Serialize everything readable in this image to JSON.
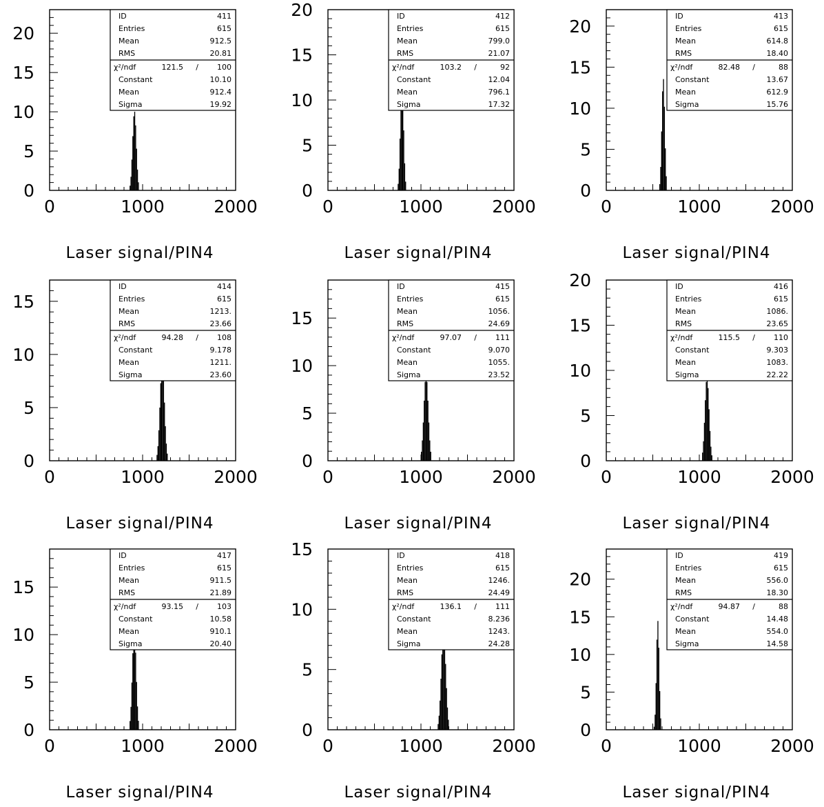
{
  "chart_data": [
    {
      "type": "bar",
      "id": "411",
      "xlabel": "Laser signal/PIN4",
      "xlim": [
        0,
        2000
      ],
      "ylim": [
        0,
        23
      ],
      "xticks": [
        "0",
        "1000",
        "2000"
      ],
      "yticks": [
        "0",
        "5",
        "10",
        "15",
        "20"
      ],
      "ytick_values": [
        0,
        5,
        10,
        15,
        20
      ],
      "stats": {
        "ID": "411",
        "Entries": "615",
        "Mean": "912.5",
        "RMS": "20.81"
      },
      "fit": {
        "chi2_ndf": "121.5",
        "ndf": "100",
        "Constant": "10.10",
        "Mean": "912.4",
        "Sigma": "19.92"
      }
    },
    {
      "type": "bar",
      "id": "412",
      "xlabel": "Laser signal/PIN4",
      "xlim": [
        0,
        2000
      ],
      "ylim": [
        0,
        20
      ],
      "xticks": [
        "0",
        "1000",
        "2000"
      ],
      "yticks": [
        "0",
        "5",
        "10",
        "15",
        "20"
      ],
      "ytick_values": [
        0,
        5,
        10,
        15,
        20
      ],
      "stats": {
        "ID": "412",
        "Entries": "615",
        "Mean": "799.0",
        "RMS": "21.07"
      },
      "fit": {
        "chi2_ndf": "103.2",
        "ndf": "92",
        "Constant": "12.04",
        "Mean": "796.1",
        "Sigma": "17.32"
      }
    },
    {
      "type": "bar",
      "id": "413",
      "xlabel": "Laser signal/PIN4",
      "xlim": [
        0,
        2000
      ],
      "ylim": [
        0,
        22
      ],
      "xticks": [
        "0",
        "1000",
        "2000"
      ],
      "yticks": [
        "0",
        "5",
        "10",
        "15",
        "20"
      ],
      "ytick_values": [
        0,
        5,
        10,
        15,
        20
      ],
      "stats": {
        "ID": "413",
        "Entries": "615",
        "Mean": "614.8",
        "RMS": "18.40"
      },
      "fit": {
        "chi2_ndf": "82.48",
        "ndf": "88",
        "Constant": "13.67",
        "Mean": "612.9",
        "Sigma": "15.76"
      }
    },
    {
      "type": "bar",
      "id": "414",
      "xlabel": "Laser signal/PIN4",
      "xlim": [
        0,
        2000
      ],
      "ylim": [
        0,
        17
      ],
      "xticks": [
        "0",
        "1000",
        "2000"
      ],
      "yticks": [
        "0",
        "5",
        "10",
        "15"
      ],
      "ytick_values": [
        0,
        5,
        10,
        15
      ],
      "stats": {
        "ID": "414",
        "Entries": "615",
        "Mean": "1213.",
        "RMS": "23.66"
      },
      "fit": {
        "chi2_ndf": "94.28",
        "ndf": "108",
        "Constant": "9.178",
        "Mean": "1211.",
        "Sigma": "23.60"
      }
    },
    {
      "type": "bar",
      "id": "415",
      "xlabel": "Laser signal/PIN4",
      "xlim": [
        0,
        2000
      ],
      "ylim": [
        0,
        19
      ],
      "xticks": [
        "0",
        "1000",
        "2000"
      ],
      "yticks": [
        "0",
        "5",
        "10",
        "15"
      ],
      "ytick_values": [
        0,
        5,
        10,
        15
      ],
      "stats": {
        "ID": "415",
        "Entries": "615",
        "Mean": "1056.",
        "RMS": "24.69"
      },
      "fit": {
        "chi2_ndf": "97.07",
        "ndf": "111",
        "Constant": "9.070",
        "Mean": "1055.",
        "Sigma": "23.52"
      }
    },
    {
      "type": "bar",
      "id": "416",
      "xlabel": "Laser signal/PIN4",
      "xlim": [
        0,
        2000
      ],
      "ylim": [
        0,
        20
      ],
      "xticks": [
        "0",
        "1000",
        "2000"
      ],
      "yticks": [
        "0",
        "5",
        "10",
        "15",
        "20"
      ],
      "ytick_values": [
        0,
        5,
        10,
        15,
        20
      ],
      "stats": {
        "ID": "416",
        "Entries": "615",
        "Mean": "1086.",
        "RMS": "23.65"
      },
      "fit": {
        "chi2_ndf": "115.5",
        "ndf": "110",
        "Constant": "9.303",
        "Mean": "1083.",
        "Sigma": "22.22"
      }
    },
    {
      "type": "bar",
      "id": "417",
      "xlabel": "Laser signal/PIN4",
      "xlim": [
        0,
        2000
      ],
      "ylim": [
        0,
        19
      ],
      "xticks": [
        "0",
        "1000",
        "2000"
      ],
      "yticks": [
        "0",
        "5",
        "10",
        "15"
      ],
      "ytick_values": [
        0,
        5,
        10,
        15
      ],
      "stats": {
        "ID": "417",
        "Entries": "615",
        "Mean": "911.5",
        "RMS": "21.89"
      },
      "fit": {
        "chi2_ndf": "93.15",
        "ndf": "103",
        "Constant": "10.58",
        "Mean": "910.1",
        "Sigma": "20.40"
      }
    },
    {
      "type": "bar",
      "id": "418",
      "xlabel": "Laser signal/PIN4",
      "xlim": [
        0,
        2000
      ],
      "ylim": [
        0,
        15
      ],
      "xticks": [
        "0",
        "1000",
        "2000"
      ],
      "yticks": [
        "0",
        "5",
        "10",
        "15"
      ],
      "ytick_values": [
        0,
        5,
        10,
        15
      ],
      "stats": {
        "ID": "418",
        "Entries": "615",
        "Mean": "1246.",
        "RMS": "24.49"
      },
      "fit": {
        "chi2_ndf": "136.1",
        "ndf": "111",
        "Constant": "8.236",
        "Mean": "1243.",
        "Sigma": "24.28"
      }
    },
    {
      "type": "bar",
      "id": "419",
      "xlabel": "Laser signal/PIN4",
      "xlim": [
        0,
        2000
      ],
      "ylim": [
        0,
        24
      ],
      "xticks": [
        "0",
        "1000",
        "2000"
      ],
      "yticks": [
        "0",
        "5",
        "10",
        "15",
        "20"
      ],
      "ytick_values": [
        0,
        5,
        10,
        15,
        20
      ],
      "stats": {
        "ID": "419",
        "Entries": "615",
        "Mean": "556.0",
        "RMS": "18.30"
      },
      "fit": {
        "chi2_ndf": "94.87",
        "ndf": "88",
        "Constant": "14.48",
        "Mean": "554.0",
        "Sigma": "14.58"
      }
    }
  ]
}
